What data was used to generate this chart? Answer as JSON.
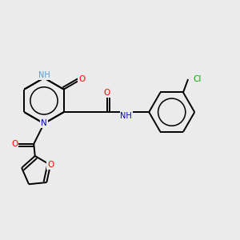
{
  "bg_color": "#ebebeb",
  "atom_colors": {
    "N": "#0000cc",
    "O": "#ff0000",
    "Cl": "#00aa00",
    "NH_color": "#5b9bd5",
    "C": "#000000"
  },
  "bond_color": "#000000",
  "bond_width": 1.4,
  "fig_bg": "#ebebeb"
}
